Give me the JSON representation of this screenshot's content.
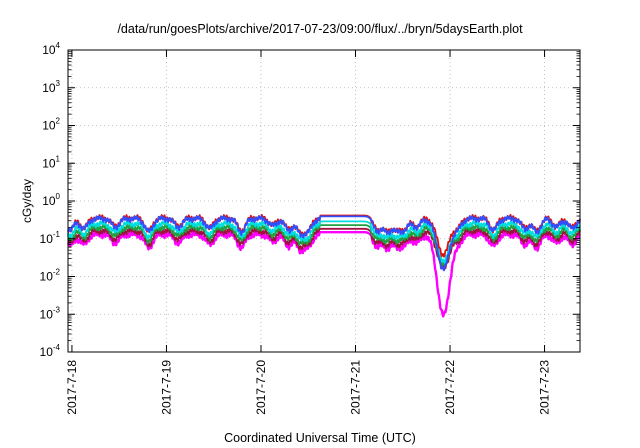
{
  "chart_data": {
    "type": "line",
    "title": "/data/run/goesPlots/archive/2017-07-23/09:00/flux/../bryn/5daysEarth.plot",
    "xlabel": "Coordinated Universal Time (UTC)",
    "ylabel": "cGy/day",
    "y_scale": "log",
    "ylim": [
      0.0001,
      10000
    ],
    "y_ticks": [
      {
        "value": 0.0001,
        "base": "10",
        "exp": "-4"
      },
      {
        "value": 0.001,
        "base": "10",
        "exp": "-3"
      },
      {
        "value": 0.01,
        "base": "10",
        "exp": "-2"
      },
      {
        "value": 0.1,
        "base": "10",
        "exp": "-1"
      },
      {
        "value": 1,
        "base": "10",
        "exp": "0"
      },
      {
        "value": 10,
        "base": "10",
        "exp": "1"
      },
      {
        "value": 100,
        "base": "10",
        "exp": "2"
      },
      {
        "value": 1000,
        "base": "10",
        "exp": "3"
      },
      {
        "value": 10000,
        "base": "10",
        "exp": "4"
      }
    ],
    "xlim": [
      "2017-07-17T23:00",
      "2017-07-23T09:00"
    ],
    "x_ticks": [
      "2017-7-18",
      "2017-7-19",
      "2017-7-20",
      "2017-7-21",
      "2017-7-22",
      "2017-7-23"
    ],
    "grid": true,
    "series": [
      {
        "color": "#ff00ff",
        "baseline": 0.13
      },
      {
        "color": "#a01040",
        "baseline": 0.16
      },
      {
        "color": "#20a040",
        "baseline": 0.2
      },
      {
        "color": "#00dddd",
        "baseline": 0.25
      },
      {
        "color": "#e01010",
        "baseline": 0.36
      },
      {
        "color": "#3050ff",
        "baseline": 0.34
      }
    ],
    "flat_segment": {
      "start": "2017-07-20T15:00",
      "end": "2017-07-21T04:00"
    },
    "dips": [
      {
        "time": "2017-07-17T23:30",
        "factor": 0.5
      },
      {
        "time": "2017-07-18T03:00",
        "factor": 0.55
      },
      {
        "time": "2017-07-18T11:00",
        "factor": 0.6
      },
      {
        "time": "2017-07-18T19:30",
        "factor": 0.45
      },
      {
        "time": "2017-07-19T03:00",
        "factor": 0.6
      },
      {
        "time": "2017-07-19T11:00",
        "factor": 0.55
      },
      {
        "time": "2017-07-19T19:00",
        "factor": 0.45
      },
      {
        "time": "2017-07-20T03:00",
        "factor": 0.65
      },
      {
        "time": "2017-07-20T07:00",
        "factor": 0.5
      },
      {
        "time": "2017-07-20T10:00",
        "factor": 0.42
      },
      {
        "time": "2017-07-20T12:00",
        "factor": 0.5
      },
      {
        "time": "2017-07-21T05:30",
        "factor": 0.5
      },
      {
        "time": "2017-07-21T08:00",
        "factor": 0.45
      },
      {
        "time": "2017-07-21T10:30",
        "factor": 0.5
      },
      {
        "time": "2017-07-21T12:30",
        "factor": 0.55
      },
      {
        "time": "2017-07-21T15:30",
        "factor": 0.6
      },
      {
        "time": "2017-07-21T22:20",
        "factor": 0.007
      },
      {
        "time": "2017-07-22T02:00",
        "factor": 0.6
      },
      {
        "time": "2017-07-22T11:00",
        "factor": 0.5
      },
      {
        "time": "2017-07-22T19:00",
        "factor": 0.55
      },
      {
        "time": "2017-07-22T22:00",
        "factor": 0.45
      },
      {
        "time": "2017-07-23T03:00",
        "factor": 0.6
      },
      {
        "time": "2017-07-23T07:00",
        "factor": 0.55
      }
    ]
  }
}
